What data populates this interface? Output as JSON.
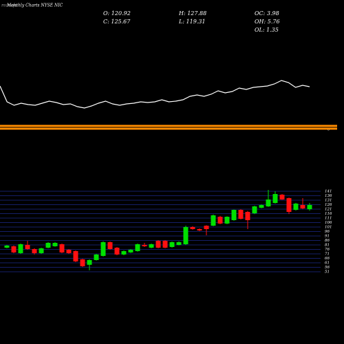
{
  "chart_data": {
    "type": "candlestick",
    "title": "Monthly Charts NYSE NIC",
    "watermark": "munafa",
    "info": [
      "O: 120.92",
      "H: 127.88",
      "OC: 3.98",
      "C: 125.67",
      "L: 119.31",
      "OH: 5.76",
      "OL: 1.35"
    ],
    "up_color": "#00e000",
    "down_color": "#ff1010",
    "grid_color": "#1c2a8c",
    "band_color": "#ff8c00",
    "band_label": "0",
    "indicator_color": "#ffffff",
    "indicator_ylim": [
      0,
      100
    ],
    "indicator_values": [
      75,
      52,
      47,
      50,
      48,
      47,
      50,
      53,
      51,
      48,
      49,
      45,
      43,
      46,
      50,
      53,
      49,
      47,
      49,
      50,
      52,
      51,
      52,
      55,
      52,
      53,
      55,
      60,
      62,
      60,
      63,
      68,
      65,
      67,
      72,
      70,
      73,
      74,
      75,
      78,
      83,
      80,
      73,
      76,
      74
    ],
    "open": [
      77.9,
      79.5,
      71.8,
      81.0,
      76.4,
      71.8,
      77.9,
      79.5,
      81.8,
      75.6,
      74.1,
      64.9,
      58.8,
      64.1,
      68.7,
      84.1,
      77.9,
      70.3,
      72.6,
      74.1,
      81.0,
      77.9,
      85.6,
      85.6,
      78.7,
      81.0,
      81.8,
      101.0,
      98.7,
      102.5,
      102.5,
      112.5,
      104.9,
      108.7,
      120.2,
      117.9,
      116.4,
      122.5,
      124.1,
      127.9,
      137.2,
      133.3,
      120.2,
      125.6,
      120.92
    ],
    "high": [
      81.0,
      80.3,
      82.5,
      85.6,
      77.2,
      77.9,
      84.1,
      84.1,
      82.5,
      76.4,
      74.8,
      65.5,
      64.9,
      71.0,
      85.0,
      84.8,
      78.7,
      74.8,
      76.4,
      82.5,
      83.3,
      82.5,
      86.4,
      86.4,
      84.8,
      85.0,
      102.5,
      102.0,
      99.5,
      103.0,
      115.0,
      113.5,
      113.0,
      120.5,
      121.0,
      119.0,
      124.8,
      126.4,
      142.5,
      141.0,
      137.9,
      134.0,
      128.0,
      133.3,
      127.88
    ],
    "low": [
      77.2,
      71.8,
      71.0,
      75.6,
      70.3,
      71.0,
      77.2,
      79.0,
      71.8,
      71.0,
      61.8,
      56.5,
      52.6,
      63.5,
      68.0,
      75.6,
      69.5,
      69.5,
      72.0,
      73.5,
      78.7,
      77.2,
      77.2,
      77.2,
      78.0,
      80.5,
      81.0,
      98.0,
      96.5,
      91.8,
      102.0,
      104.2,
      104.2,
      108.0,
      109.5,
      98.7,
      115.5,
      122.0,
      123.5,
      127.2,
      131.5,
      115.5,
      119.5,
      121.0,
      119.31
    ],
    "close": [
      80.3,
      72.6,
      81.8,
      76.4,
      71.8,
      77.2,
      83.3,
      83.3,
      72.6,
      71.8,
      62.6,
      57.2,
      64.1,
      70.3,
      84.1,
      76.4,
      70.3,
      74.1,
      75.6,
      81.8,
      79.5,
      81.8,
      77.9,
      77.9,
      84.1,
      84.1,
      101.0,
      98.7,
      97.2,
      98.7,
      114.1,
      104.9,
      112.5,
      120.2,
      110.2,
      108.7,
      124.1,
      125.6,
      131.8,
      137.9,
      131.8,
      117.9,
      127.2,
      121.8,
      125.67
    ],
    "ylim": [
      47.15,
      147.15
    ],
    "yticks": [
      141,
      136,
      131,
      126,
      121,
      116,
      111,
      106,
      101,
      96,
      91,
      86,
      81,
      76,
      71,
      66,
      61,
      56,
      51
    ],
    "grid": true
  }
}
